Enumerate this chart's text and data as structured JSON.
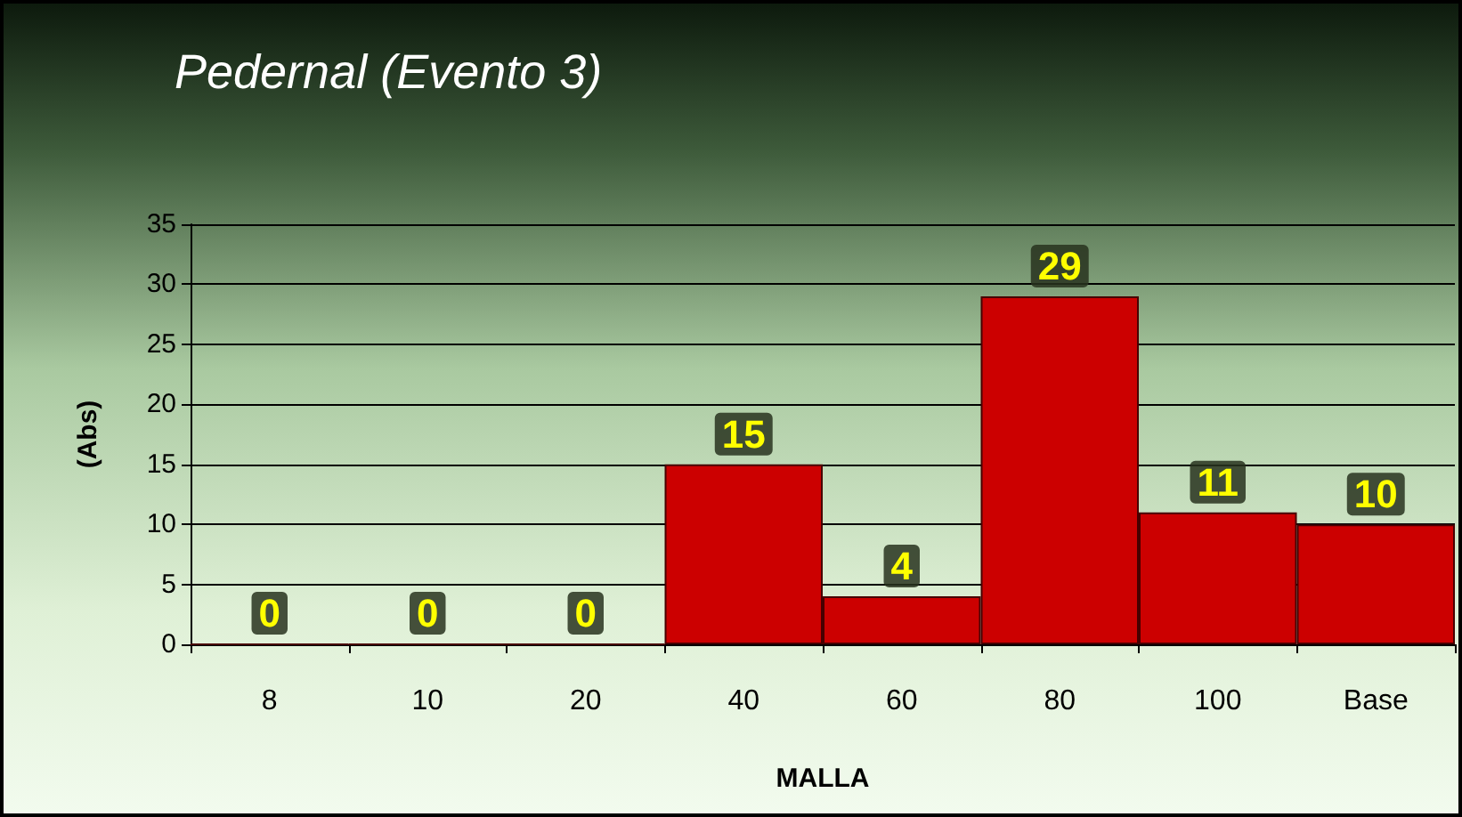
{
  "chart_data": {
    "type": "bar",
    "title": "Pedernal (Evento 3)",
    "xlabel": "MALLA",
    "ylabel": "(Abs)",
    "categories": [
      "8",
      "10",
      "20",
      "40",
      "60",
      "80",
      "100",
      "Base"
    ],
    "values": [
      0,
      0,
      0,
      15,
      4,
      29,
      11,
      10
    ],
    "color": "#cc0000",
    "ylim": [
      0,
      35
    ],
    "yticks": [
      0,
      5,
      10,
      15,
      20,
      25,
      30,
      35
    ],
    "grid": "y",
    "data_labels": true
  }
}
